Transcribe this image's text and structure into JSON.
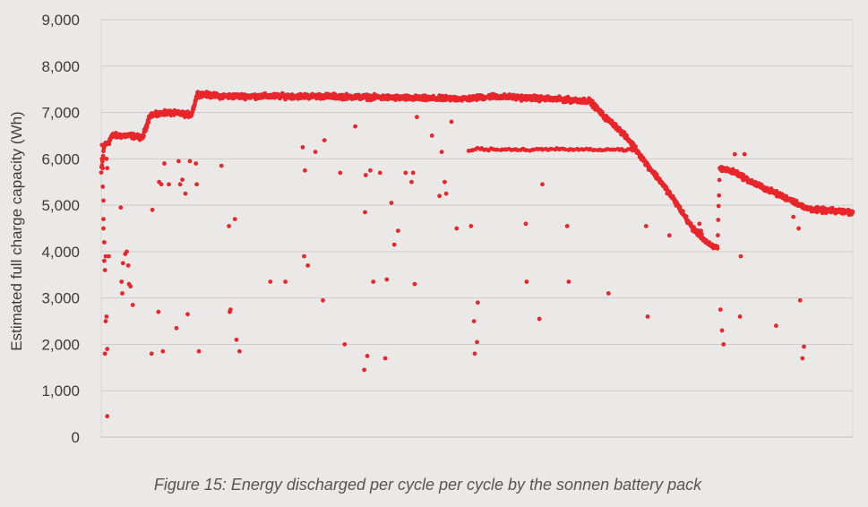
{
  "caption": "Figure 15: Energy discharged per cycle per cycle by the sonnen battery pack",
  "chart_data": {
    "type": "scatter",
    "ylabel": "Estimated full charge capacity (Wh)",
    "ylim": [
      0,
      9000
    ],
    "xlim": [
      0,
      1000
    ],
    "yticks": [
      0,
      1000,
      2000,
      3000,
      4000,
      5000,
      6000,
      7000,
      8000,
      9000
    ],
    "ytick_labels": [
      "0",
      "1,000",
      "2,000",
      "3,000",
      "4,000",
      "5,000",
      "6,000",
      "7,000",
      "8,000",
      "9,000"
    ],
    "grid": true,
    "color": "#e8262b",
    "main_trend": [
      [
        0,
        5700
      ],
      [
        4,
        6300
      ],
      [
        10,
        6350
      ],
      [
        14,
        6500
      ],
      [
        40,
        6500
      ],
      [
        55,
        6450
      ],
      [
        65,
        6950
      ],
      [
        75,
        6950
      ],
      [
        85,
        7000
      ],
      [
        120,
        6950
      ],
      [
        128,
        7400
      ],
      [
        160,
        7350
      ],
      [
        200,
        7350
      ],
      [
        300,
        7350
      ],
      [
        440,
        7300
      ],
      [
        490,
        7300
      ],
      [
        520,
        7350
      ],
      [
        650,
        7250
      ],
      [
        670,
        6900
      ],
      [
        685,
        6700
      ],
      [
        705,
        6350
      ],
      [
        725,
        5900
      ],
      [
        745,
        5500
      ],
      [
        765,
        5050
      ],
      [
        785,
        4550
      ],
      [
        800,
        4300
      ],
      [
        812,
        4100
      ],
      [
        820,
        4100
      ],
      [
        823,
        5800
      ],
      [
        845,
        5700
      ],
      [
        865,
        5500
      ],
      [
        885,
        5350
      ],
      [
        905,
        5200
      ],
      [
        920,
        5100
      ],
      [
        935,
        4950
      ],
      [
        950,
        4900
      ],
      [
        1000,
        4850
      ]
    ],
    "secondary_trend": [
      [
        488,
        6200
      ],
      [
        520,
        6200
      ],
      [
        560,
        6200
      ],
      [
        600,
        6200
      ],
      [
        640,
        6200
      ],
      [
        680,
        6200
      ],
      [
        708,
        6200
      ]
    ],
    "outliers": [
      [
        1,
        6300
      ],
      [
        1,
        6000
      ],
      [
        2,
        5800
      ],
      [
        2,
        5400
      ],
      [
        3,
        5100
      ],
      [
        3,
        4700
      ],
      [
        3,
        4500
      ],
      [
        4,
        4200
      ],
      [
        4,
        3800
      ],
      [
        5,
        3600
      ],
      [
        5,
        1800
      ],
      [
        6,
        3900
      ],
      [
        6,
        2500
      ],
      [
        7,
        2600
      ],
      [
        7,
        6000
      ],
      [
        8,
        450
      ],
      [
        8,
        1900
      ],
      [
        8,
        5800
      ],
      [
        10,
        3900
      ],
      [
        26,
        4950
      ],
      [
        27,
        3350
      ],
      [
        28,
        3100
      ],
      [
        29,
        3750
      ],
      [
        32,
        3950
      ],
      [
        34,
        4000
      ],
      [
        36,
        3700
      ],
      [
        37,
        3300
      ],
      [
        39,
        3250
      ],
      [
        42,
        2850
      ],
      [
        67,
        1800
      ],
      [
        68,
        4900
      ],
      [
        76,
        2700
      ],
      [
        77,
        5500
      ],
      [
        80,
        5450
      ],
      [
        82,
        1850
      ],
      [
        84,
        5900
      ],
      [
        90,
        5450
      ],
      [
        100,
        2350
      ],
      [
        103,
        5950
      ],
      [
        105,
        5450
      ],
      [
        108,
        5550
      ],
      [
        112,
        5250
      ],
      [
        115,
        2650
      ],
      [
        118,
        5950
      ],
      [
        126,
        5900
      ],
      [
        127,
        5450
      ],
      [
        130,
        1850
      ],
      [
        160,
        5850
      ],
      [
        170,
        4550
      ],
      [
        171,
        2700
      ],
      [
        172,
        2750
      ],
      [
        178,
        4700
      ],
      [
        180,
        2100
      ],
      [
        184,
        1850
      ],
      [
        225,
        3350
      ],
      [
        245,
        3350
      ],
      [
        268,
        6250
      ],
      [
        270,
        3900
      ],
      [
        271,
        5750
      ],
      [
        275,
        3700
      ],
      [
        285,
        6150
      ],
      [
        295,
        2950
      ],
      [
        297,
        6400
      ],
      [
        318,
        5700
      ],
      [
        324,
        2000
      ],
      [
        338,
        6700
      ],
      [
        350,
        1450
      ],
      [
        351,
        4850
      ],
      [
        352,
        5650
      ],
      [
        354,
        1750
      ],
      [
        358,
        5750
      ],
      [
        362,
        3350
      ],
      [
        371,
        5700
      ],
      [
        378,
        1700
      ],
      [
        380,
        3400
      ],
      [
        386,
        5050
      ],
      [
        390,
        4150
      ],
      [
        395,
        4450
      ],
      [
        405,
        5700
      ],
      [
        413,
        5500
      ],
      [
        415,
        5700
      ],
      [
        417,
        3300
      ],
      [
        420,
        6900
      ],
      [
        440,
        6500
      ],
      [
        450,
        5200
      ],
      [
        453,
        6150
      ],
      [
        457,
        5500
      ],
      [
        459,
        5250
      ],
      [
        466,
        6800
      ],
      [
        473,
        4500
      ],
      [
        492,
        4550
      ],
      [
        496,
        2500
      ],
      [
        497,
        1800
      ],
      [
        500,
        2050
      ],
      [
        501,
        2900
      ],
      [
        565,
        4600
      ],
      [
        566,
        3350
      ],
      [
        583,
        2550
      ],
      [
        587,
        5450
      ],
      [
        620,
        4550
      ],
      [
        622,
        3350
      ],
      [
        675,
        3100
      ],
      [
        725,
        4550
      ],
      [
        727,
        2600
      ],
      [
        756,
        4350
      ],
      [
        787,
        4450
      ],
      [
        796,
        4600
      ],
      [
        798,
        4450
      ],
      [
        824,
        2750
      ],
      [
        826,
        2300
      ],
      [
        828,
        2000
      ],
      [
        843,
        6100
      ],
      [
        850,
        2600
      ],
      [
        851,
        3900
      ],
      [
        856,
        6100
      ],
      [
        898,
        2400
      ],
      [
        921,
        4750
      ],
      [
        928,
        4500
      ],
      [
        930,
        2950
      ],
      [
        933,
        1700
      ],
      [
        935,
        1950
      ]
    ]
  }
}
